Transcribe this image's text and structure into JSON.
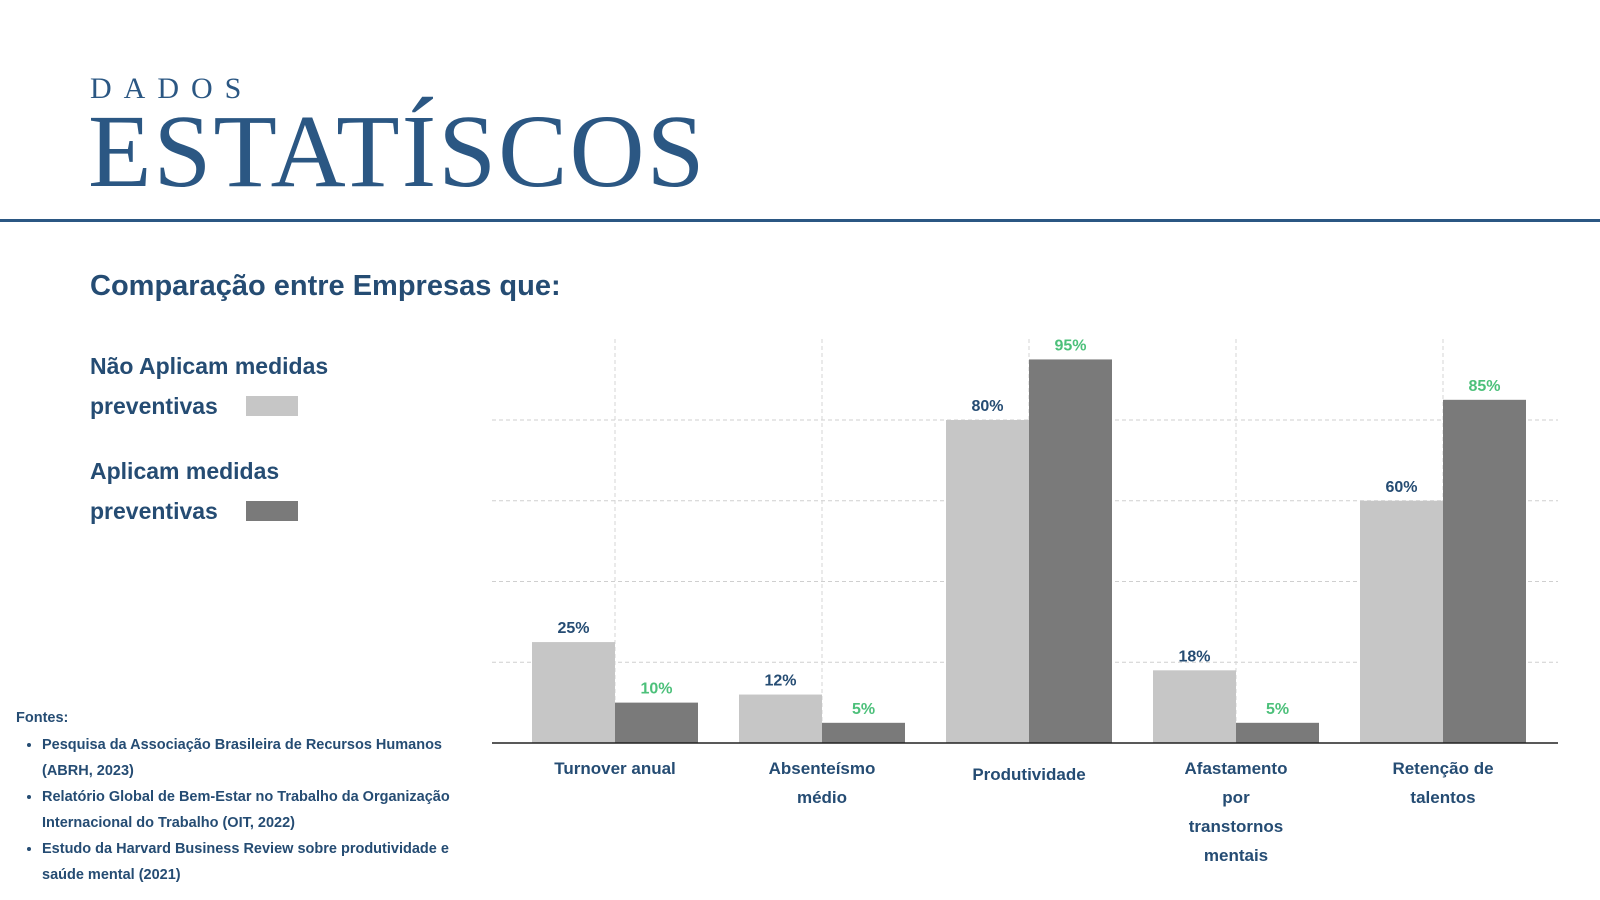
{
  "header": {
    "kicker": "DADOS",
    "title": "ESTATÍSCOS"
  },
  "subtitle": "Comparação entre Empresas que:",
  "legend": [
    {
      "line1": "Não Aplicam medidas",
      "line2": "preventivas",
      "color": "#c6c6c6"
    },
    {
      "line1": "Aplicam medidas",
      "line2": "preventivas",
      "color": "#7a7a7a"
    }
  ],
  "sources": {
    "heading": "Fontes:",
    "items": [
      "Pesquisa da Associação Brasileira de Recursos Humanos (ABRH, 2023)",
      "Relatório Global de Bem-Estar no Trabalho da Organização Internacional do Trabalho (OIT, 2022)",
      "Estudo da Harvard Business Review sobre produtividade e saúde mental (2021)"
    ]
  },
  "chart_data": {
    "type": "bar",
    "categories": [
      "Turnover anual",
      "Absenteísmo médio",
      "Produtividade",
      "Afastamento por transtornos mentais",
      "Retenção de talentos"
    ],
    "category_lines": [
      [
        "Turnover anual"
      ],
      [
        "Absenteísmo",
        "médio"
      ],
      [
        "Produtividade"
      ],
      [
        "Afastamento",
        "por",
        "transtornos",
        "mentais"
      ],
      [
        "Retenção de",
        "talentos"
      ]
    ],
    "series": [
      {
        "values": [
          25,
          12,
          80,
          18,
          60
        ],
        "labels": [
          "25%",
          "12%",
          "80%",
          "18%",
          "60%"
        ],
        "color": "#c6c6c6",
        "label_color": "#254c73"
      },
      {
        "values": [
          10,
          5,
          95,
          5,
          85
        ],
        "labels": [
          "10%",
          "5%",
          "95%",
          "5%",
          "85%"
        ],
        "color": "#7a7a7a",
        "label_color": "#4cc07a"
      }
    ],
    "ylim": [
      0,
      100
    ],
    "grid": true,
    "xlabel": "",
    "ylabel": ""
  }
}
